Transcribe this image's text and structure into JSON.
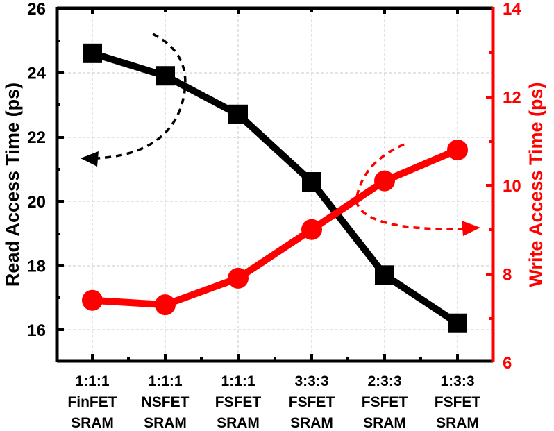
{
  "chart_data": {
    "type": "line",
    "title": "",
    "categories": [
      [
        "1:1:1",
        "FinFET",
        "SRAM"
      ],
      [
        "1:1:1",
        "NSFET",
        "SRAM"
      ],
      [
        "1:1:1",
        "FSFET",
        "SRAM"
      ],
      [
        "3:3:3",
        "FSFET",
        "SRAM"
      ],
      [
        "2:3:3",
        "FSFET",
        "SRAM"
      ],
      [
        "1:3:3",
        "FSFET",
        "SRAM"
      ]
    ],
    "series": [
      {
        "name": "Read Access Time",
        "axis": "left",
        "color": "#000000",
        "marker": "square",
        "values": [
          24.6,
          23.9,
          22.7,
          20.6,
          17.7,
          16.2
        ]
      },
      {
        "name": "Write Access Time",
        "axis": "right",
        "color": "#ff0000",
        "marker": "circle",
        "values": [
          7.4,
          7.3,
          7.9,
          9.0,
          10.1,
          10.8
        ]
      }
    ],
    "xlabel": "",
    "ylabel": "Read Access Time (ps)",
    "ylabel_right": "Write Access Time (ps)",
    "ylim": [
      15,
      26
    ],
    "ylim_right": [
      6,
      14
    ],
    "yticks": [
      16,
      18,
      20,
      22,
      24,
      26
    ],
    "yticks_right": [
      6,
      8,
      10,
      12,
      14
    ],
    "grid": true,
    "legend": "none (dashed arrows indicate axis association)"
  },
  "labels": {
    "left_ticks": [
      "16",
      "18",
      "20",
      "22",
      "24",
      "26"
    ],
    "right_ticks": [
      "6",
      "8",
      "10",
      "12",
      "14"
    ],
    "ylabel_left": "Read Access Time (ps)",
    "ylabel_right": "Write Access Time (ps)",
    "cats": [
      {
        "l1": "1:1:1",
        "l2": "FinFET",
        "l3": "SRAM"
      },
      {
        "l1": "1:1:1",
        "l2": "NSFET",
        "l3": "SRAM"
      },
      {
        "l1": "1:1:1",
        "l2": "FSFET",
        "l3": "SRAM"
      },
      {
        "l1": "3:3:3",
        "l2": "FSFET",
        "l3": "SRAM"
      },
      {
        "l1": "2:3:3",
        "l2": "FSFET",
        "l3": "SRAM"
      },
      {
        "l1": "1:3:3",
        "l2": "FSFET",
        "l3": "SRAM"
      }
    ]
  },
  "colors": {
    "read": "#000000",
    "write": "#ff0000",
    "grid": "#cccccc"
  }
}
